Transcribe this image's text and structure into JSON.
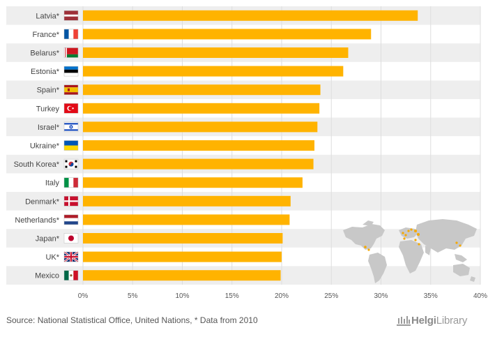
{
  "chart_data": {
    "type": "bar",
    "orientation": "horizontal",
    "categories": [
      "Latvia*",
      "France*",
      "Belarus*",
      "Estonia*",
      "Spain*",
      "Turkey",
      "Israel*",
      "Ukraine*",
      "South Korea*",
      "Italy",
      "Denmark*",
      "Netherlands*",
      "Japan*",
      "UK*",
      "Mexico"
    ],
    "values": [
      33.7,
      29.0,
      26.7,
      26.2,
      23.9,
      23.8,
      23.6,
      23.3,
      23.2,
      22.1,
      20.9,
      20.8,
      20.1,
      20.0,
      19.9
    ],
    "title": "",
    "xlabel": "",
    "ylabel": "",
    "xlim": [
      0,
      40
    ],
    "xticks": [
      "0%",
      "5%",
      "10%",
      "15%",
      "20%",
      "25%",
      "30%",
      "35%",
      "40%"
    ],
    "grid": true,
    "bar_color": "#FFB300"
  },
  "flags": [
    "latvia-flag-icon",
    "france-flag-icon",
    "belarus-flag-icon",
    "estonia-flag-icon",
    "spain-flag-icon",
    "turkey-flag-icon",
    "israel-flag-icon",
    "ukraine-flag-icon",
    "south-korea-flag-icon",
    "italy-flag-icon",
    "denmark-flag-icon",
    "netherlands-flag-icon",
    "japan-flag-icon",
    "uk-flag-icon",
    "mexico-flag-icon"
  ],
  "footer": {
    "source": "Source: National Statistical Office, United Nations, * Data from 2010",
    "logo_part1": "Helgi",
    "logo_part2": "Library"
  },
  "colors": {
    "bar": "#FFB300",
    "row_stripe": "#EEEEEE",
    "grid": "#DDDDDD",
    "map": "#C8C8C8",
    "map_highlight": "#F5A800"
  }
}
